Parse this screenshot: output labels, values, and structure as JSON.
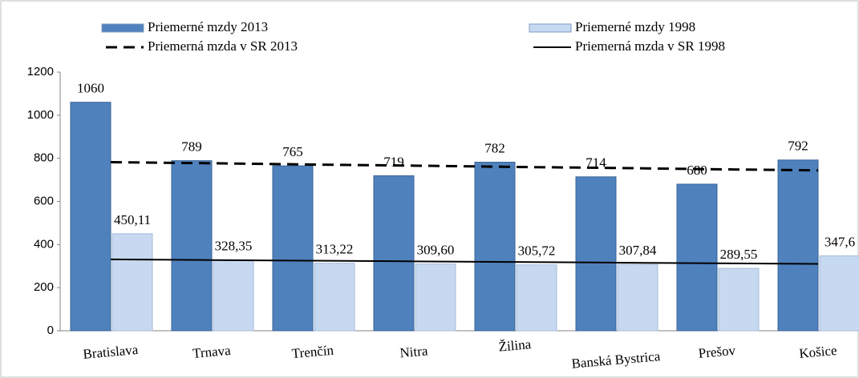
{
  "chart_data": {
    "type": "bar",
    "categories": [
      "Bratislava",
      "Trnava",
      "Trenčín",
      "Nitra",
      "Žilina",
      "Banská Bystrica",
      "Prešov",
      "Košice"
    ],
    "series": [
      {
        "name": "Priemerné mzdy 2013",
        "color": "#4f81bd",
        "values": [
          1060,
          789,
          765,
          719,
          782,
          714,
          680,
          792
        ]
      },
      {
        "name": "Priemerné mzdy 1998",
        "color": "#c6d9f1",
        "values": [
          450.11,
          328.35,
          313.22,
          309.6,
          305.72,
          307.84,
          289.55,
          347.6
        ],
        "value_labels": [
          "450,11",
          "328,35",
          "313,22",
          "309,60",
          "305,72",
          "307,84",
          "289,55",
          "347,6"
        ]
      },
      {
        "name": "Priemerná mzda v SR 2013",
        "type": "line",
        "color": "#000000",
        "dashed": true,
        "values": [
          782,
          777,
          771,
          766,
          760,
          755,
          749,
          744
        ]
      },
      {
        "name": "Priemerná mzda v SR 1998",
        "type": "line",
        "color": "#000000",
        "dashed": false,
        "values": [
          331,
          328,
          325,
          322,
          319,
          316,
          313,
          310
        ]
      }
    ],
    "ylim": [
      0,
      1200
    ],
    "yticks": [
      0,
      200,
      400,
      600,
      800,
      1000,
      1200
    ],
    "grid": false
  }
}
